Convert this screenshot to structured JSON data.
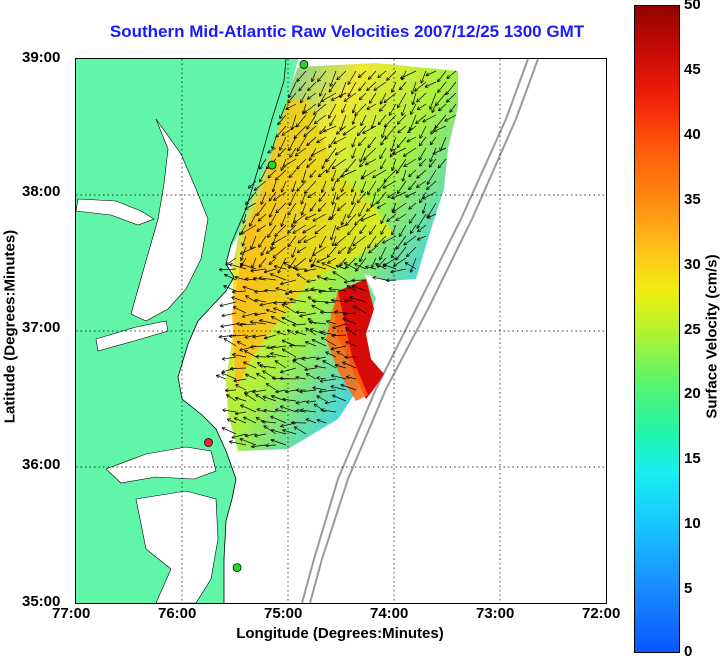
{
  "title": "Southern Mid-Atlantic Raw Velocities 2007/12/25 1300 GMT",
  "xlabel": "Longitude (Degrees:Minutes)",
  "ylabel": "Latitude (Degrees:Minutes)",
  "colorbar": {
    "label": "Surface Velocity (cm/s)",
    "ticks": [
      "0",
      "5",
      "10",
      "15",
      "20",
      "25",
      "30",
      "35",
      "40",
      "45",
      "50"
    ],
    "range": [
      0,
      50
    ],
    "colormap": "jet"
  },
  "x_ticks": [
    "77:00",
    "76:00",
    "75:00",
    "74:00",
    "73:00",
    "72:00"
  ],
  "y_ticks": [
    "39:00",
    "38:00",
    "37:00",
    "36:00",
    "35:00"
  ],
  "map": {
    "lon_range": [
      -77.0,
      -72.0
    ],
    "lat_range": [
      35.0,
      39.0
    ],
    "land_color": "#60f5a8",
    "water_color": "#ffffff",
    "grid": "dotted",
    "radar_sites": [
      {
        "lon": -74.85,
        "lat": 38.96,
        "color": "#22dd22"
      },
      {
        "lon": -75.15,
        "lat": 38.22,
        "color": "#22dd22"
      },
      {
        "lon": -75.75,
        "lat": 36.18,
        "color": "#ff2222"
      },
      {
        "lon": -75.48,
        "lat": 35.26,
        "color": "#22dd22"
      }
    ]
  }
}
